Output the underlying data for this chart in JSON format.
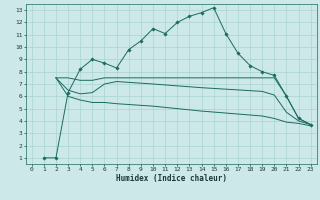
{
  "xlabel": "Humidex (Indice chaleur)",
  "bg_color": "#cce8e8",
  "grid_color": "#aad4d0",
  "line_color": "#1a6b60",
  "xlim": [
    -0.5,
    23.5
  ],
  "ylim": [
    0.5,
    13.5
  ],
  "xticks": [
    0,
    1,
    2,
    3,
    4,
    5,
    6,
    7,
    8,
    9,
    10,
    11,
    12,
    13,
    14,
    15,
    16,
    17,
    18,
    19,
    20,
    21,
    22,
    23
  ],
  "yticks": [
    1,
    2,
    3,
    4,
    5,
    6,
    7,
    8,
    9,
    10,
    11,
    12,
    13
  ],
  "line1_x": [
    1,
    2,
    3,
    4,
    5,
    6,
    7,
    8,
    9,
    10,
    11,
    12,
    13,
    14,
    15,
    16,
    17,
    18,
    19,
    20,
    21,
    22,
    23
  ],
  "line1_y": [
    1,
    1,
    6.3,
    8.2,
    9.0,
    8.7,
    8.3,
    9.8,
    10.5,
    11.5,
    11.1,
    12.0,
    12.5,
    12.8,
    13.2,
    11.1,
    9.5,
    8.5,
    8.0,
    7.7,
    6.0,
    4.2,
    3.7
  ],
  "line2_x": [
    2,
    3,
    4,
    5,
    6,
    7,
    10,
    14,
    19,
    20,
    21,
    22,
    23
  ],
  "line2_y": [
    7.5,
    7.5,
    7.3,
    7.3,
    7.5,
    7.5,
    7.5,
    7.5,
    7.5,
    7.5,
    6.0,
    4.2,
    3.7
  ],
  "line3_x": [
    2,
    3,
    4,
    5,
    6,
    7,
    10,
    14,
    19,
    20,
    21,
    22,
    23
  ],
  "line3_y": [
    7.5,
    6.5,
    6.2,
    6.3,
    7.0,
    7.2,
    7.0,
    6.7,
    6.4,
    6.1,
    4.7,
    4.0,
    3.7
  ],
  "line4_x": [
    2,
    3,
    4,
    5,
    6,
    7,
    10,
    14,
    19,
    20,
    21,
    22,
    23
  ],
  "line4_y": [
    7.5,
    6.0,
    5.7,
    5.5,
    5.5,
    5.4,
    5.2,
    4.8,
    4.4,
    4.2,
    3.9,
    3.8,
    3.6
  ]
}
